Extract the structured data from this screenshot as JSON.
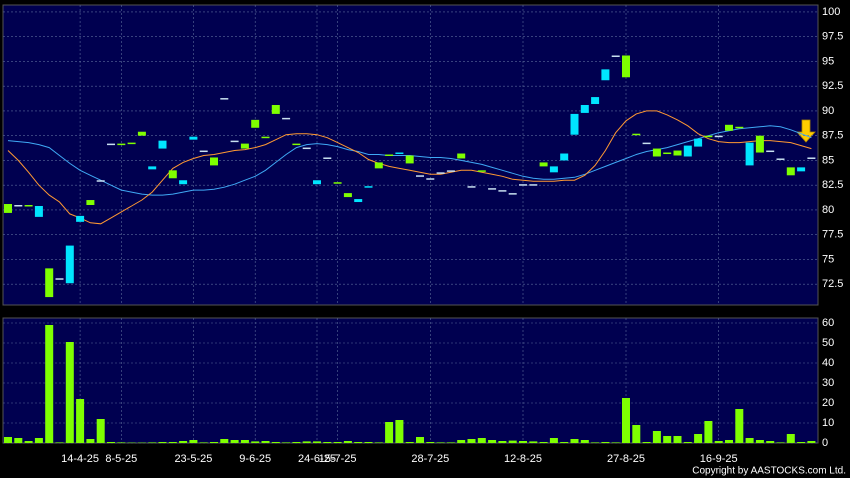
{
  "chart_data": {
    "type": "candlestick",
    "categories": [
      null,
      null,
      null,
      null,
      null,
      null,
      null,
      "14-4-25",
      null,
      null,
      null,
      "8-5-25",
      null,
      null,
      null,
      null,
      null,
      null,
      "23-5-25",
      null,
      null,
      null,
      null,
      null,
      "9-6-25",
      null,
      null,
      null,
      null,
      null,
      "24-6-25",
      null,
      "15-7-25",
      null,
      null,
      null,
      null,
      null,
      null,
      null,
      null,
      "28-7-25",
      null,
      null,
      null,
      null,
      null,
      null,
      null,
      null,
      "12-8-25",
      null,
      null,
      null,
      null,
      null,
      null,
      null,
      null,
      null,
      "27-8-25",
      null,
      null,
      null,
      null,
      null,
      null,
      null,
      null,
      "16-9-25",
      null,
      null,
      null,
      null,
      null,
      null,
      null,
      null,
      null
    ],
    "open": [
      80.6,
      80.5,
      80.5,
      79.3,
      74.1,
      73.1,
      72.6,
      78.8,
      81,
      83,
      86.7,
      86.7,
      86.8,
      87.9,
      84.1,
      86.2,
      84,
      82.6,
      87.1,
      86,
      85.3,
      91.3,
      87,
      86.7,
      89.1,
      87.4,
      90.6,
      89.3,
      86.7,
      86.3,
      82.6,
      85.3,
      82.8,
      81.7,
      80.8,
      82.3,
      84.8,
      85.6,
      85.7,
      85.5,
      83.5,
      83.2,
      83.8,
      84,
      85.7,
      82.4,
      84,
      82.2,
      82,
      81.7,
      82.6,
      82.6,
      84.8,
      83.8,
      85,
      87.6,
      89.8,
      90.7,
      93.1,
      95.6,
      95.6,
      87.7,
      86.8,
      86.2,
      85.8,
      86,
      85.4,
      86.4,
      87.5,
      87.5,
      88.6,
      88.4,
      84.5,
      87.5,
      86,
      85.2,
      84.3,
      83.9,
      85.3
    ],
    "close": [
      79.7,
      80.5,
      80.4,
      80.4,
      71.2,
      73.1,
      76.4,
      79.4,
      80.5,
      83,
      86.7,
      86.6,
      86.7,
      87.5,
      84.4,
      87,
      83.2,
      83,
      87.4,
      86,
      84.5,
      91.3,
      87,
      86.2,
      88.3,
      87.3,
      89.7,
      89.3,
      86.6,
      86.3,
      83,
      85.3,
      82.7,
      81.3,
      81.1,
      82.4,
      84.2,
      85.5,
      85.8,
      84.7,
      83.5,
      83.2,
      83.8,
      84,
      85.2,
      82.4,
      83.9,
      82.2,
      82,
      81.7,
      82.6,
      82.6,
      84.4,
      84.4,
      85.7,
      89.7,
      90.6,
      91.4,
      94.2,
      95.6,
      93.4,
      87.6,
      86.8,
      85.4,
      85.7,
      85.5,
      86.5,
      87.2,
      87.4,
      87.5,
      88,
      88.3,
      86.8,
      85.8,
      86,
      85.2,
      83.5,
      84.3,
      85.3
    ],
    "up_color": "#00e5ff",
    "down_color": "#7fff00",
    "flat_color": "#c8e0f0",
    "ylim": [
      70.4,
      100.7
    ],
    "yticks": [
      72.5,
      75,
      77.5,
      80,
      82.5,
      85,
      87.5,
      90,
      92.5,
      95,
      97.5,
      100
    ],
    "grid": true,
    "moving_averages": [
      {
        "color": "#3fa9f5",
        "values": [
          87,
          86.9,
          86.8,
          86.6,
          86.3,
          85.5,
          84.7,
          84,
          83.5,
          83,
          82.5,
          82,
          81.8,
          81.6,
          81.5,
          81.5,
          81.6,
          81.8,
          82,
          82,
          82.1,
          82.3,
          82.6,
          83,
          83.4,
          84,
          84.8,
          85.6,
          86.3,
          86.6,
          86.7,
          86.6,
          86.4,
          86.1,
          85.9,
          85.6,
          85.6,
          85.5,
          85.5,
          85.5,
          85.4,
          85.3,
          85.3,
          85.2,
          85,
          84.8,
          84.6,
          84.3,
          84,
          83.7,
          83.4,
          83.2,
          83.1,
          83.1,
          83.2,
          83.3,
          83.6,
          84,
          84.4,
          84.8,
          85.2,
          85.6,
          85.9,
          86.1,
          86.3,
          86.6,
          86.9,
          87.2,
          87.5,
          87.8,
          88,
          88.2,
          88.3,
          88.4,
          88.5,
          88.4,
          88.1,
          87.7,
          87.3
        ]
      },
      {
        "color": "#ff9933",
        "values": [
          86,
          85,
          83.8,
          82.5,
          81.5,
          80.8,
          79.6,
          79.2,
          78.7,
          78.6,
          79.2,
          79.8,
          80.4,
          81,
          81.8,
          83,
          84.2,
          84.8,
          85.2,
          85.5,
          85.6,
          85.8,
          86,
          86.1,
          86.3,
          86.6,
          87.1,
          87.6,
          87.7,
          87.7,
          87.6,
          87.3,
          86.8,
          86.3,
          85.8,
          85.1,
          84.7,
          84.4,
          84.2,
          84,
          83.8,
          83.6,
          83.6,
          83.8,
          84,
          84,
          83.8,
          83.6,
          83.4,
          83.1,
          83,
          82.9,
          82.9,
          82.9,
          83,
          83,
          83.5,
          84.5,
          86,
          87.8,
          89,
          89.7,
          90,
          90,
          89.6,
          89.1,
          88.5,
          87.7,
          87.2,
          86.9,
          86.8,
          86.8,
          86.9,
          87,
          87,
          86.9,
          86.8,
          86.5,
          86.2
        ]
      }
    ],
    "volume": {
      "type": "bar",
      "color": "#7fff00",
      "values": [
        3,
        2.5,
        1,
        2.5,
        59,
        0.3,
        50.5,
        22,
        2,
        12,
        0.5,
        0.3,
        0.2,
        0.2,
        0.3,
        0.5,
        0.5,
        1,
        1.5,
        0.3,
        0.5,
        2,
        1.5,
        1.5,
        0.8,
        1,
        0.5,
        0.3,
        0.5,
        0.8,
        0.8,
        0.5,
        0.5,
        1,
        0.5,
        0.5,
        0.3,
        10.5,
        11.5,
        0.5,
        3,
        0.5,
        0.3,
        0.3,
        1.5,
        2,
        2.5,
        1.5,
        1,
        1.2,
        1,
        0.8,
        0.5,
        2.5,
        0.5,
        2,
        1.5,
        0.3,
        0.5,
        0.3,
        22.5,
        9,
        0.5,
        6,
        3.5,
        3.5,
        0.5,
        4.5,
        11,
        1,
        1.5,
        17,
        2.5,
        1.5,
        1,
        0.3,
        4.5,
        0.5,
        1
      ],
      "ylim": [
        0,
        62.5
      ],
      "yticks": [
        0,
        10,
        20,
        30,
        40,
        50,
        60
      ]
    },
    "copyright": "Copyright by AASTOCKS.com Ltd."
  }
}
